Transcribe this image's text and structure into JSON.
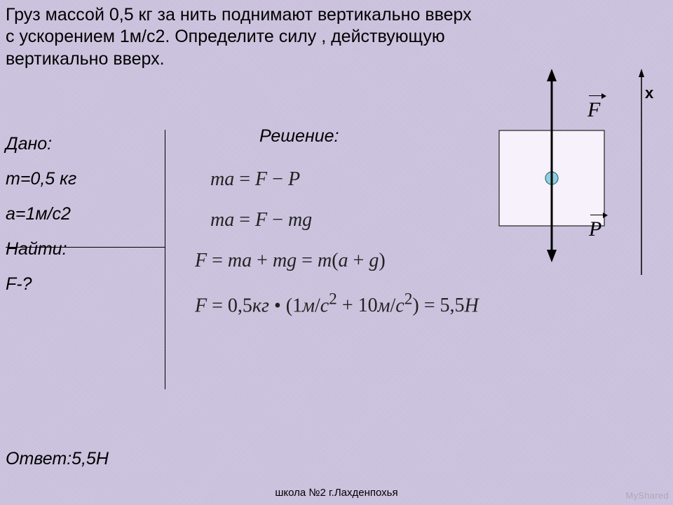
{
  "problem_text": "Груз массой 0,5 кг за нить поднимают вертикально вверх с ускорением 1м/с2. Определите силу , действующую вертикально вверх.",
  "given": {
    "label": "Дано:",
    "lines": [
      "m=0,5 кг",
      "а=1м/с2"
    ],
    "find_label": "Найти:",
    "find_lines": [
      "F-?"
    ]
  },
  "solution": {
    "label": "Решение:",
    "eq1_html": "ma <span class=\"op\">=</span> F <span class=\"op\">−</span> P",
    "eq2_html": "ma <span class=\"op\">=</span> F <span class=\"op\">−</span> mg",
    "eq3_html": "F <span class=\"op\">=</span> ma <span class=\"op\">+</span> mg <span class=\"op\">=</span> m<span class=\"op\">(</span>a <span class=\"op\">+</span> g<span class=\"op\">)</span>",
    "eq4_html": "F <span class=\"op\">=</span> <span class=\"op\">0,5</span>кг <span class=\"op\">•</span> <span class=\"op\">(1</span>м<span class=\"op\">/</span>c<span class=\"op\"><sup>2</sup> + 10</span>м<span class=\"op\">/</span>c<span class=\"op\"><sup>2</sup>) = 5,5</span>H"
  },
  "answer": "Ответ:5,5Н",
  "footer": "школа №2 г.Лахденпохья",
  "watermark": "MyShared",
  "diagram": {
    "axis_label": "x",
    "force_up_label": "F",
    "force_down_label": "P",
    "box_fill": "#f6f1fa",
    "box_stroke": "#222222",
    "arrow_color": "#000000",
    "dot_fill": "#8fcfe0",
    "dot_stroke": "#3a6b78"
  },
  "colors": {
    "background_base": "#cfc6e0",
    "hatch": "#a096be",
    "text": "#000000"
  }
}
